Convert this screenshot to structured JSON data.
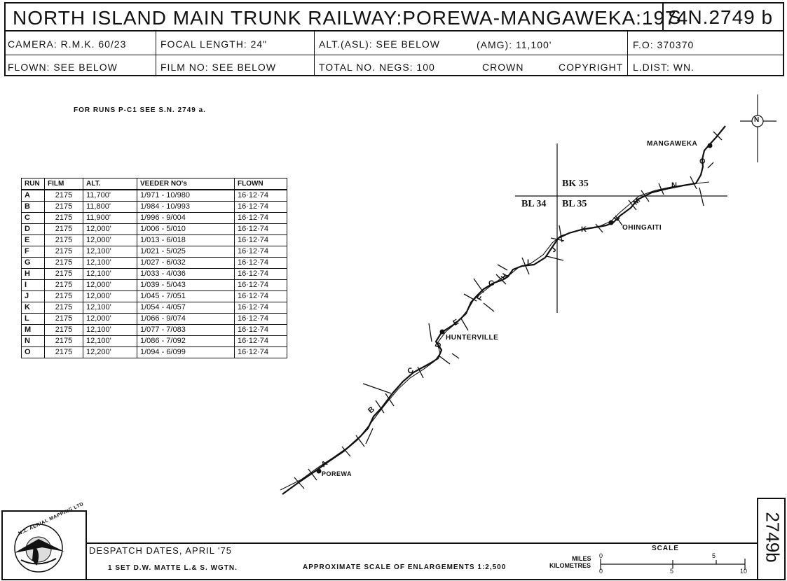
{
  "header": {
    "title": "NORTH ISLAND MAIN TRUNK RAILWAY:POREWA-MANGAWEKA:1974",
    "sn": "S.N.2749 b",
    "row1": {
      "camera": "CAMERA: R.M.K. 60/23",
      "focal": "FOCAL LENGTH: 24\"",
      "alt": "ALT.(ASL): SEE BELOW",
      "amg": "(AMG): 11,100'",
      "fo": "F.O: 370370"
    },
    "row2": {
      "flown": "FLOWN: SEE BELOW",
      "film": "FILM NO: SEE BELOW",
      "negs": "TOTAL NO. NEGS: 100",
      "crown": "CROWN",
      "copyright": "COPYRIGHT",
      "ldist": "L.DIST: WN."
    }
  },
  "note": "FOR RUNS P-C1 SEE S.N. 2749 a.",
  "table": {
    "headers": [
      "RUN",
      "FILM",
      "ALT.",
      "VEEDER NO's",
      "FLOWN"
    ],
    "rows": [
      [
        "A",
        "2175",
        "11,700'",
        "1/971 - 10/980",
        "16·12·74"
      ],
      [
        "B",
        "2175",
        "11,800'",
        "1/984 - 10/993",
        "16·12·74"
      ],
      [
        "C",
        "2175",
        "11,900'",
        "1/996 - 9/004",
        "16·12·74"
      ],
      [
        "D",
        "2175",
        "12,000'",
        "1/006 - 5/010",
        "16·12·74"
      ],
      [
        "E",
        "2175",
        "12,000'",
        "1/013 - 6/018",
        "16·12·74"
      ],
      [
        "F",
        "2175",
        "12,100'",
        "1/021 - 5/025",
        "16·12·74"
      ],
      [
        "G",
        "2175",
        "12,100'",
        "1/027 - 6/032",
        "16·12·74"
      ],
      [
        "H",
        "2175",
        "12,100'",
        "1/033 - 4/036",
        "16·12·74"
      ],
      [
        "I",
        "2175",
        "12,000'",
        "1/039 - 5/043",
        "16·12·74"
      ],
      [
        "J",
        "2175",
        "12,000'",
        "1/045 - 7/051",
        "16·12·74"
      ],
      [
        "K",
        "2175",
        "12,100'",
        "1/054 - 4/057",
        "16·12·74"
      ],
      [
        "L",
        "2175",
        "12,000'",
        "1/066 - 9/074",
        "16·12·74"
      ],
      [
        "M",
        "2175",
        "12,100'",
        "1/077 - 7/083",
        "16·12·74"
      ],
      [
        "N",
        "2175",
        "12,100'",
        "1/086 - 7/092",
        "16·12·74"
      ],
      [
        "O",
        "2175",
        "12,200'",
        "1/094 - 6/099",
        "16·12·74"
      ]
    ]
  },
  "map": {
    "places": {
      "mangaweka": "MANGAWEKA",
      "ohingaiti": "OHINGAITI",
      "hunterville": "HUNTERVILLE",
      "porewa": "POREWA"
    },
    "sheets": {
      "bk35": "BK 35",
      "bl34": "BL 34",
      "bl35": "BL 35"
    },
    "north": "N",
    "run_labels": [
      "A",
      "B",
      "C",
      "D",
      "E",
      "F",
      "G",
      "H",
      "I",
      "J",
      "K",
      "L",
      "M",
      "N",
      "O"
    ]
  },
  "footer": {
    "logo_text": "N.Z. AERIAL MAPPING LTD",
    "despatch": "DESPATCH DATES, APRIL '75",
    "set": "1 SET  D.W. MATTE   L.& S. WGTN.",
    "approx": "APPROXIMATE  SCALE OF ENLARGEMENTS  1:2,500",
    "scale_title": "SCALE",
    "miles": "MILES",
    "km": "KILOMETRES",
    "miles_ticks": [
      "0",
      "5"
    ],
    "km_ticks": [
      "0",
      "5",
      "10"
    ],
    "side_code": "2749b"
  }
}
